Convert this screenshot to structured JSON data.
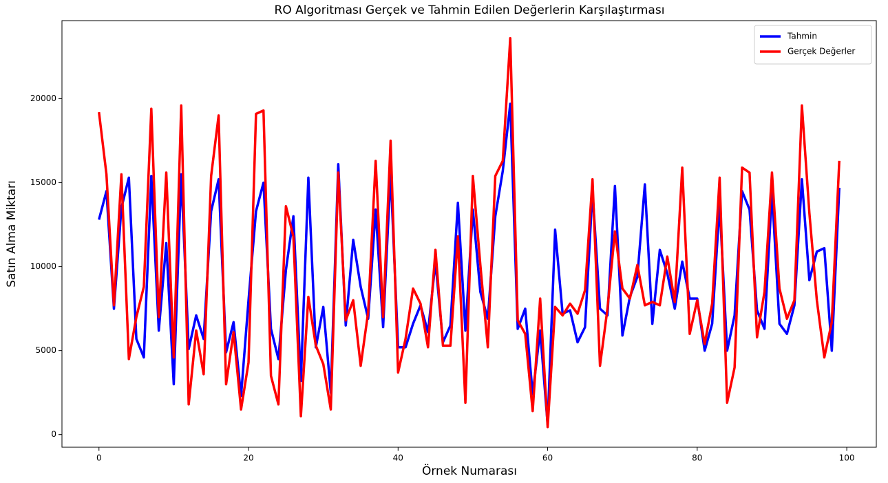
{
  "chart_data": {
    "type": "line",
    "title": "RO Algoritması Gerçek ve Tahmin Edilen Değerlerin Karşılaştırması",
    "x_label": "Örnek Numarası",
    "y_label": "Satın Alma Miktarı",
    "x": [
      0,
      1,
      2,
      3,
      4,
      5,
      6,
      7,
      8,
      9,
      10,
      11,
      12,
      13,
      14,
      15,
      16,
      17,
      18,
      19,
      20,
      21,
      22,
      23,
      24,
      25,
      26,
      27,
      28,
      29,
      30,
      31,
      32,
      33,
      34,
      35,
      36,
      37,
      38,
      39,
      40,
      41,
      42,
      43,
      44,
      45,
      46,
      47,
      48,
      49,
      50,
      51,
      52,
      53,
      54,
      55,
      56,
      57,
      58,
      59,
      60,
      61,
      62,
      63,
      64,
      65,
      66,
      67,
      68,
      69,
      70,
      71,
      72,
      73,
      74,
      75,
      76,
      77,
      78,
      79,
      80,
      81,
      82,
      83,
      84,
      85,
      86,
      87,
      88,
      89,
      90,
      91,
      92,
      93,
      94,
      95,
      96,
      97,
      98,
      99
    ],
    "series": [
      {
        "name": "Tahmin",
        "color": "#0000ff",
        "values": [
          12800,
          14500,
          7500,
          13500,
          15300,
          5700,
          4600,
          15400,
          6200,
          11400,
          3000,
          15500,
          5100,
          7100,
          5700,
          13300,
          15200,
          4900,
          6700,
          2300,
          8000,
          13300,
          15000,
          6300,
          4500,
          9800,
          13000,
          3200,
          15300,
          5200,
          7600,
          2500,
          16100,
          6500,
          11600,
          8800,
          6900,
          13400,
          6400,
          15600,
          5200,
          5200,
          6600,
          7700,
          6100,
          10300,
          5500,
          6500,
          13800,
          6200,
          13400,
          8500,
          6900,
          13000,
          15700,
          19700,
          6300,
          7500,
          2400,
          6200,
          600,
          12200,
          7200,
          7400,
          5500,
          6400,
          14500,
          7500,
          7100,
          14800,
          5900,
          8200,
          9400,
          14900,
          6600,
          11000,
          9600,
          7500,
          10300,
          8100,
          8100,
          5000,
          6600,
          13700,
          5000,
          7100,
          14500,
          13400,
          7400,
          6300,
          14500,
          6600,
          6000,
          7700,
          15200,
          9200,
          10900,
          11100,
          5000,
          14700
        ]
      },
      {
        "name": "Gerçek Değerler",
        "color": "#ff0000",
        "values": [
          19200,
          15500,
          7700,
          15500,
          4500,
          7000,
          8800,
          19400,
          7000,
          15600,
          4600,
          19600,
          1800,
          6200,
          3600,
          15400,
          19000,
          3000,
          6100,
          1500,
          4300,
          19100,
          19300,
          3500,
          1800,
          13600,
          11800,
          1100,
          8200,
          5300,
          4200,
          1500,
          15600,
          6800,
          8000,
          4100,
          7300,
          16300,
          7000,
          17500,
          3700,
          5700,
          8700,
          7800,
          5200,
          11000,
          5300,
          5300,
          11800,
          1900,
          15400,
          10100,
          5200,
          15400,
          16300,
          23600,
          6800,
          6000,
          1400,
          8100,
          450,
          7600,
          7100,
          7800,
          7200,
          8600,
          15200,
          4100,
          7500,
          12100,
          8700,
          8100,
          10100,
          7700,
          7900,
          7700,
          10600,
          7900,
          15900,
          6000,
          8000,
          5400,
          7800,
          15300,
          1900,
          4000,
          15900,
          15600,
          5800,
          8500,
          15600,
          8700,
          6900,
          8000,
          19600,
          13200,
          8000,
          4600,
          6700,
          16300
        ]
      }
    ],
    "xlim": [
      -4.95,
      103.95
    ],
    "xticks": [
      0,
      20,
      40,
      60,
      80,
      100
    ],
    "ylim": [
      -750,
      24650
    ],
    "yticks": [
      0,
      5000,
      10000,
      15000,
      20000
    ],
    "legend": "upper right"
  }
}
